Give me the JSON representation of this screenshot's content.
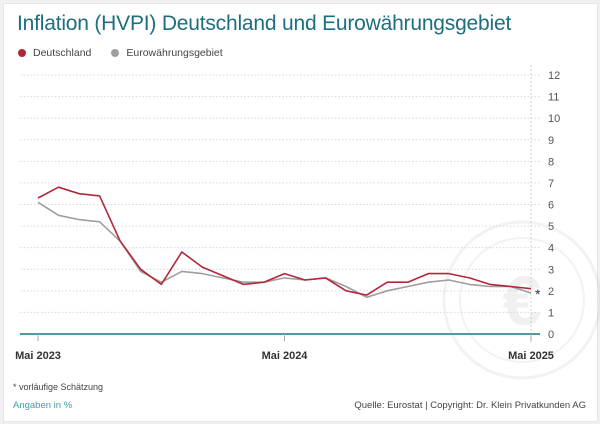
{
  "title": "Inflation (HVPI) Deutschland und Eurowährungsgebiet",
  "legend": [
    {
      "label": "Deutschland",
      "color": "#b3273a"
    },
    {
      "label": "Eurowährungsgebiet",
      "color": "#9e9e9e"
    }
  ],
  "footnote": "* vorläufige Schätzung",
  "unit_note": "Angaben in %",
  "source": "Quelle: Eurostat | Copyright: Dr. Klein Privatkunden AG",
  "chart_data": {
    "type": "line",
    "title": "Inflation (HVPI) Deutschland und Eurowährungsgebiet",
    "xlabel": "",
    "ylabel": "Angaben in %",
    "ylim": [
      0,
      12
    ],
    "y_ticks": [
      "0",
      "1",
      "2",
      "3",
      "4",
      "5",
      "6",
      "7",
      "8",
      "9",
      "10",
      "11",
      "12"
    ],
    "x": [
      "2023-05",
      "2023-06",
      "2023-07",
      "2023-08",
      "2023-09",
      "2023-10",
      "2023-11",
      "2023-12",
      "2024-01",
      "2024-02",
      "2024-03",
      "2024-04",
      "2024-05",
      "2024-06",
      "2024-07",
      "2024-08",
      "2024-09",
      "2024-10",
      "2024-11",
      "2024-12",
      "2025-01",
      "2025-02",
      "2025-03",
      "2025-04",
      "2025-05"
    ],
    "x_tick_labels": [
      {
        "index": 0,
        "label": "Mai 2023"
      },
      {
        "index": 12,
        "label": "Mai 2024"
      },
      {
        "index": 24,
        "label": "Mai 2025"
      }
    ],
    "grid": true,
    "legend_position": "top-left",
    "annotation": {
      "index": 24,
      "text": "*"
    },
    "series": [
      {
        "name": "Deutschland",
        "color": "#b3273a",
        "values": [
          6.3,
          6.8,
          6.5,
          6.4,
          4.3,
          3.0,
          2.3,
          3.8,
          3.1,
          2.7,
          2.3,
          2.4,
          2.8,
          2.5,
          2.6,
          2.0,
          1.8,
          2.4,
          2.4,
          2.8,
          2.8,
          2.6,
          2.3,
          2.2,
          2.1
        ]
      },
      {
        "name": "Eurowährungsgebiet",
        "color": "#9e9e9e",
        "values": [
          6.1,
          5.5,
          5.3,
          5.2,
          4.3,
          2.9,
          2.4,
          2.9,
          2.8,
          2.6,
          2.4,
          2.4,
          2.6,
          2.5,
          2.6,
          2.2,
          1.7,
          2.0,
          2.2,
          2.4,
          2.5,
          2.3,
          2.2,
          2.2,
          1.9
        ]
      }
    ]
  }
}
